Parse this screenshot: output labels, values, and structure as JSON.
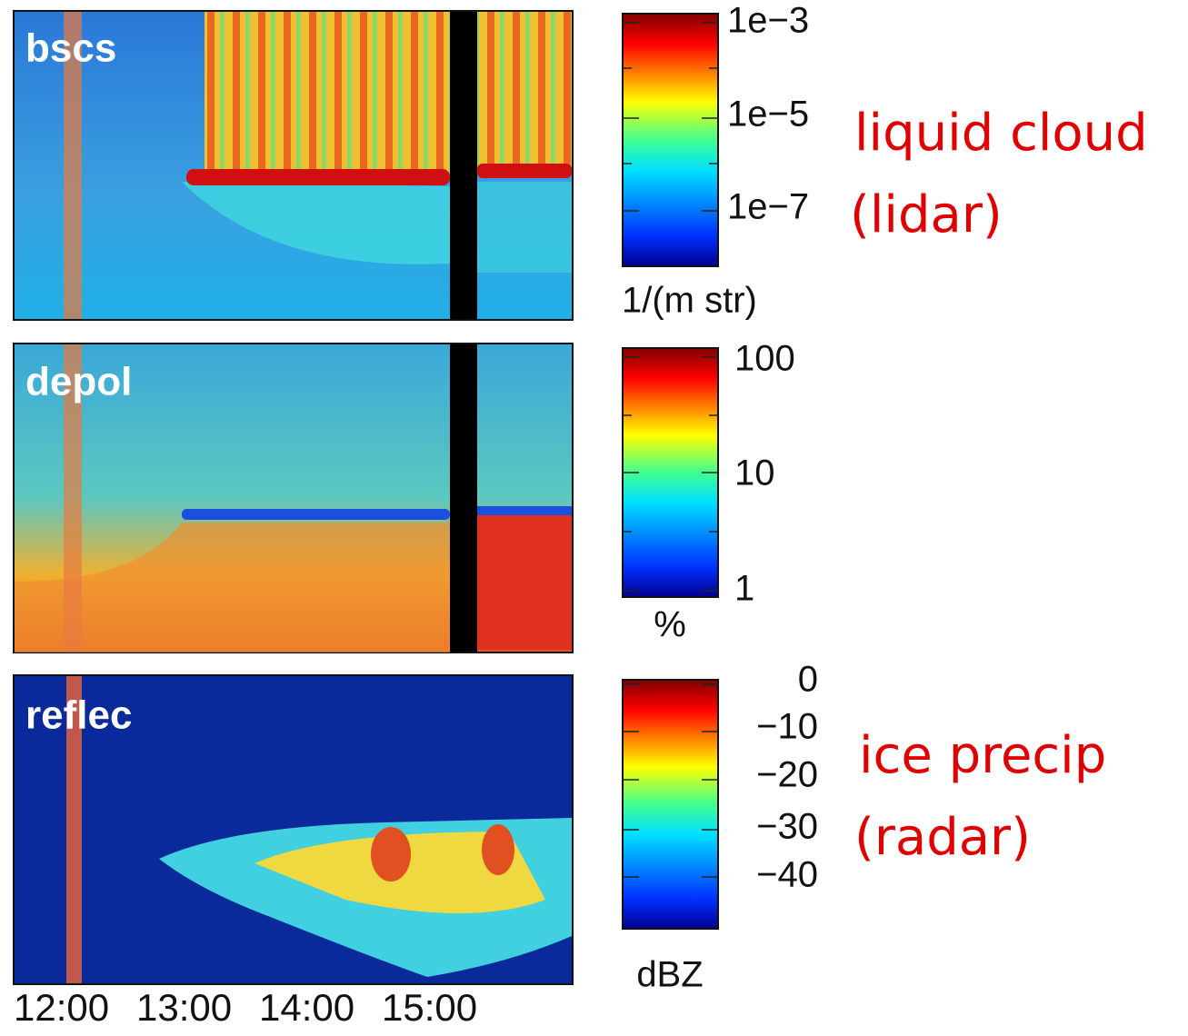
{
  "panels": [
    {
      "label": "bscs",
      "colorbar": {
        "ticks": [
          "1e−3",
          "1e−5",
          "1e−7"
        ],
        "unit": "1/(m str)"
      },
      "annotation": [
        "liquid cloud",
        "(lidar)"
      ]
    },
    {
      "label": "depol",
      "colorbar": {
        "ticks": [
          "100",
          "10",
          "1"
        ],
        "unit": "%"
      }
    },
    {
      "label": "reflec",
      "colorbar": {
        "ticks": [
          "0",
          "−10",
          "−20",
          "−30",
          "−40"
        ],
        "unit": "dBZ"
      },
      "annotation": [
        "ice precip",
        "(radar)"
      ]
    }
  ],
  "x_labels": [
    "12:00",
    "13:00",
    "14:00",
    "15:00"
  ]
}
